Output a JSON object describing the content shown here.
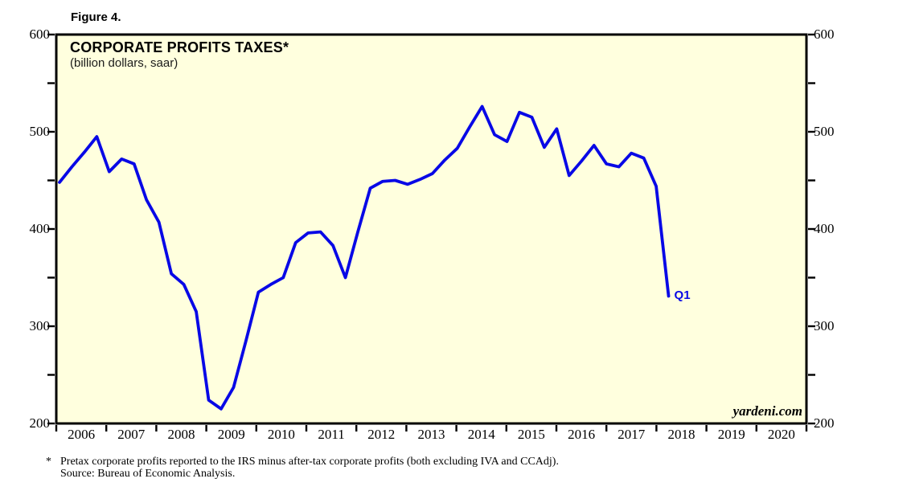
{
  "figure_label": "Figure 4.",
  "header": {
    "title": "CORPORATE PROFITS TAXES*",
    "subtitle": "(billion dollars, saar)"
  },
  "watermark": "yardeni.com",
  "footnote": {
    "marker": "*",
    "line1": "Pretax corporate profits reported to the IRS minus after-tax corporate profits (both excluding IVA and CCAdj).",
    "line2": "Source: Bureau of Economic Analysis."
  },
  "chart_data": {
    "type": "line",
    "title": "CORPORATE PROFITS TAXES*",
    "subtitle": "(billion dollars, saar)",
    "series_name": "Corporate profits taxes (billion dollars, saar)",
    "x": [
      "2005 Q4",
      "2006 Q1",
      "2006 Q2",
      "2006 Q3",
      "2006 Q4",
      "2007 Q1",
      "2007 Q2",
      "2007 Q3",
      "2007 Q4",
      "2008 Q1",
      "2008 Q2",
      "2008 Q3",
      "2008 Q4",
      "2009 Q1",
      "2009 Q2",
      "2009 Q3",
      "2009 Q4",
      "2010 Q1",
      "2010 Q2",
      "2010 Q3",
      "2010 Q4",
      "2011 Q1",
      "2011 Q2",
      "2011 Q3",
      "2011 Q4",
      "2012 Q1",
      "2012 Q2",
      "2012 Q3",
      "2012 Q4",
      "2013 Q1",
      "2013 Q2",
      "2013 Q3",
      "2013 Q4",
      "2014 Q1",
      "2014 Q2",
      "2014 Q3",
      "2014 Q4",
      "2015 Q1",
      "2015 Q2",
      "2015 Q3",
      "2015 Q4",
      "2016 Q1",
      "2016 Q2",
      "2016 Q3",
      "2016 Q4",
      "2017 Q1",
      "2017 Q2",
      "2017 Q3",
      "2017 Q4",
      "2018 Q1"
    ],
    "values": [
      448,
      464,
      479,
      495,
      459,
      472,
      467,
      430,
      407,
      354,
      343,
      315,
      224,
      215,
      237,
      285,
      335,
      343,
      350,
      386,
      396,
      397,
      383,
      350,
      397,
      442,
      449,
      450,
      446,
      451,
      457,
      471,
      483,
      505,
      526,
      497,
      490,
      520,
      515,
      484,
      503,
      455,
      470,
      486,
      467,
      464,
      478,
      473,
      444,
      331
    ],
    "ylim": [
      200,
      600
    ],
    "y_major_ticks": [
      600,
      500,
      400,
      300,
      200
    ],
    "y_minor_ticks": [
      550,
      450,
      350,
      250
    ],
    "year_labels": [
      "2006",
      "2007",
      "2008",
      "2009",
      "2010",
      "2011",
      "2012",
      "2013",
      "2014",
      "2015",
      "2016",
      "2017",
      "2018",
      "2019",
      "2020"
    ],
    "last_point_label": "Q1",
    "line_color": "#0808E6",
    "plot_background": "#FFFFDE",
    "frame_color": "#000000",
    "grid": false,
    "legend": false
  }
}
